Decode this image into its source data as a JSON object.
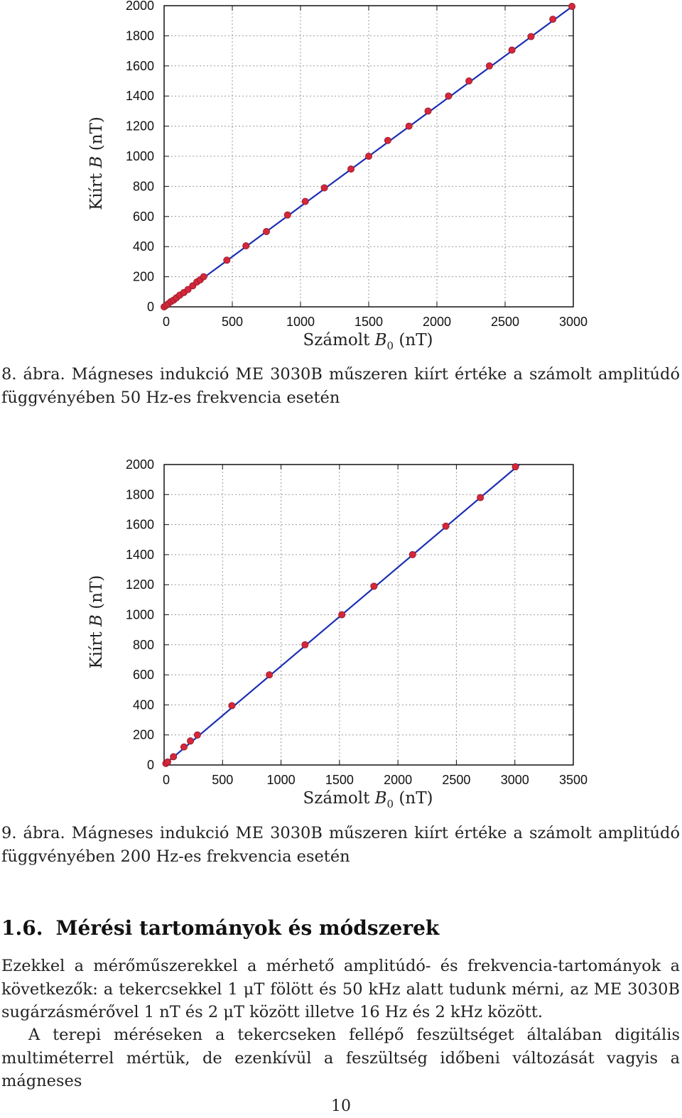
{
  "chart_data": [
    {
      "type": "scatter",
      "title": "",
      "xlabel": "Számolt B0 (nT)",
      "ylabel": "Kiírt B (nT)",
      "xlim": [
        0,
        3000
      ],
      "ylim": [
        0,
        2000
      ],
      "xticks": [
        "0",
        "500",
        "1000",
        "1500",
        "2000",
        "2500",
        "3000"
      ],
      "yticks": [
        "0",
        "200",
        "400",
        "600",
        "800",
        "1000",
        "1200",
        "1400",
        "1600",
        "1800",
        "2000"
      ],
      "grid": true,
      "fit_line": {
        "slope": 0.6667,
        "intercept": 0
      },
      "x": [
        0,
        15,
        30,
        50,
        70,
        90,
        115,
        145,
        175,
        210,
        240,
        265,
        290,
        460,
        600,
        750,
        905,
        1035,
        1175,
        1370,
        1500,
        1640,
        1795,
        1935,
        2085,
        2235,
        2385,
        2550,
        2690,
        2850,
        2990
      ],
      "y": [
        0,
        10,
        20,
        35,
        45,
        60,
        78,
        95,
        115,
        140,
        165,
        180,
        200,
        310,
        405,
        500,
        610,
        700,
        790,
        915,
        1000,
        1105,
        1200,
        1300,
        1400,
        1500,
        1600,
        1705,
        1795,
        1910,
        1995
      ]
    },
    {
      "type": "scatter",
      "title": "",
      "xlabel": "Számolt B0 (nT)",
      "ylabel": "Kiírt B (nT)",
      "xlim": [
        0,
        3500
      ],
      "ylim": [
        0,
        2000
      ],
      "xticks": [
        "0",
        "500",
        "1000",
        "1500",
        "2000",
        "2500",
        "3000",
        "3500"
      ],
      "yticks": [
        "0",
        "200",
        "400",
        "600",
        "800",
        "1000",
        "1200",
        "1400",
        "1600",
        "1800",
        "2000"
      ],
      "grid": true,
      "fit_line": {
        "slope": 0.658,
        "intercept": 0
      },
      "x": [
        15,
        30,
        80,
        170,
        225,
        285,
        580,
        900,
        1205,
        1520,
        1795,
        2125,
        2410,
        2705,
        3005
      ],
      "y": [
        10,
        20,
        55,
        120,
        160,
        200,
        395,
        600,
        800,
        1000,
        1190,
        1400,
        1590,
        1780,
        1985
      ]
    }
  ],
  "axis_labels": {
    "y_word": "Kiírt",
    "y_sym": "B",
    "unit": "(nT)",
    "x_word": "Számolt",
    "x_sym": "B",
    "x_sub": "0"
  },
  "captions": [
    {
      "num": "8. ábra.",
      "text": "Mágneses indukció ME 3030B műszeren kiírt értéke a számolt amplitúdó függvényében 50 Hz-es frekvencia esetén"
    },
    {
      "num": "9. ábra.",
      "text": "Mágneses indukció ME 3030B műszeren kiírt értéke a számolt amplitúdó függvényében 200 Hz-es frekvencia esetén"
    }
  ],
  "section": {
    "number": "1.6.",
    "title": "Mérési tartományok és módszerek"
  },
  "paragraphs": [
    "Ezekkel a mérőműszerekkel a mérhető amplitúdó- és frekvencia-tartományok a következők: a tekercsekkel 1 μT fölött és 50 kHz alatt tudunk mérni, az ME 3030B sugárzásmérővel 1 nT és 2 μT között illetve 16 Hz és 2 kHz között.",
    "A terepi méréseken a tekercseken fellépő feszültséget általában digitális multiméterrel mértük, de ezenkívül a feszültség időbeni változását vagyis a mágneses"
  ],
  "page_number": "10",
  "colors": {
    "point": "#d6263a",
    "line": "#1b2fb4",
    "grid": "#9a9a9a",
    "frame": "#111111"
  }
}
